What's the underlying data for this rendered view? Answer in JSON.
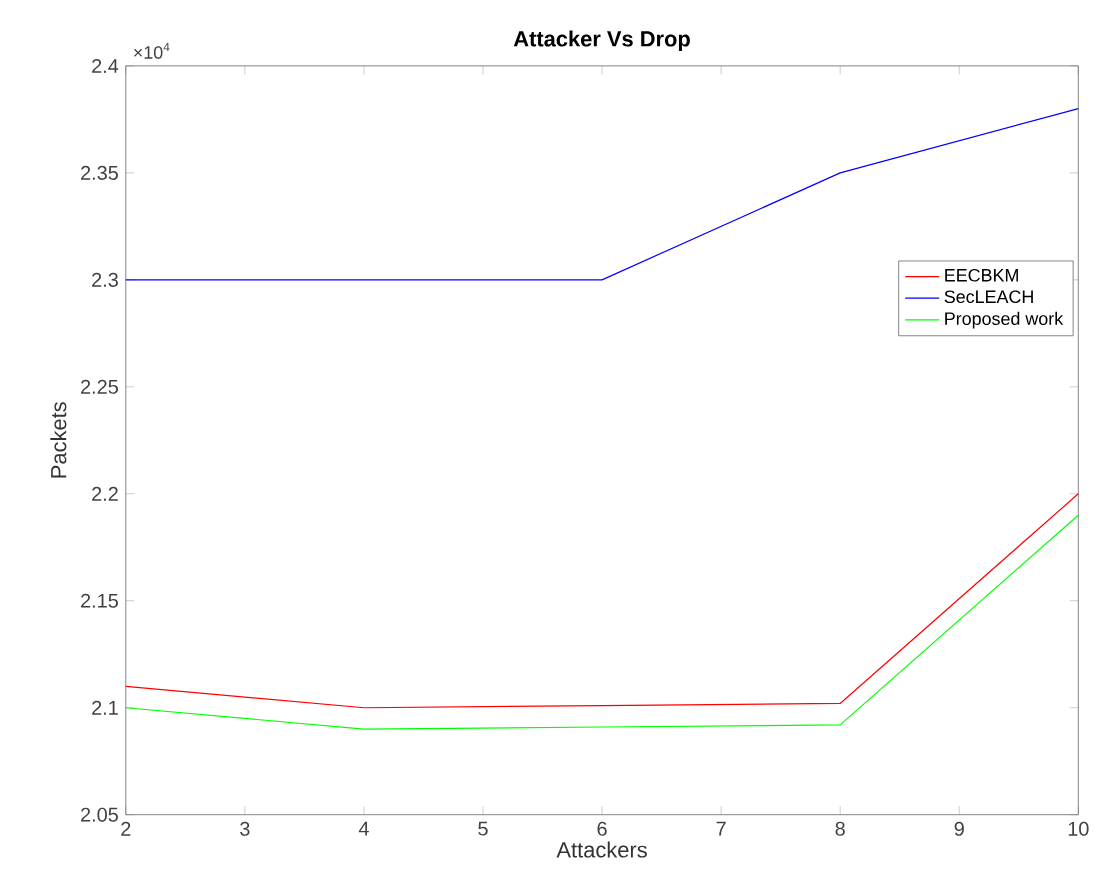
{
  "chart_data": {
    "type": "line",
    "title": "Attacker Vs Drop",
    "xlabel": "Attackers",
    "ylabel": "Packets",
    "x": [
      2,
      4,
      6,
      8,
      10
    ],
    "series": [
      {
        "name": "EECBKM",
        "color": "#ff0000",
        "values": [
          2.11,
          2.1,
          2.101,
          2.102,
          2.2
        ]
      },
      {
        "name": "SecLEACH",
        "color": "#0000ff",
        "values": [
          2.3,
          2.3,
          2.3,
          2.35,
          2.38
        ]
      },
      {
        "name": "Proposed work",
        "color": "#00ff00",
        "values": [
          2.1,
          2.09,
          2.091,
          2.092,
          2.19
        ]
      }
    ],
    "xlim": [
      2,
      10
    ],
    "xticks": [
      2,
      3,
      4,
      5,
      6,
      7,
      8,
      9,
      10
    ],
    "ylim": [
      2.05,
      2.4
    ],
    "yticks": [
      2.05,
      2.1,
      2.15,
      2.2,
      2.25,
      2.3,
      2.35,
      2.4
    ],
    "annotations": [
      "×10$^{4}$"
    ],
    "legend": "right",
    "grid": false,
    "marker": "none",
    "line_style": "solid"
  }
}
